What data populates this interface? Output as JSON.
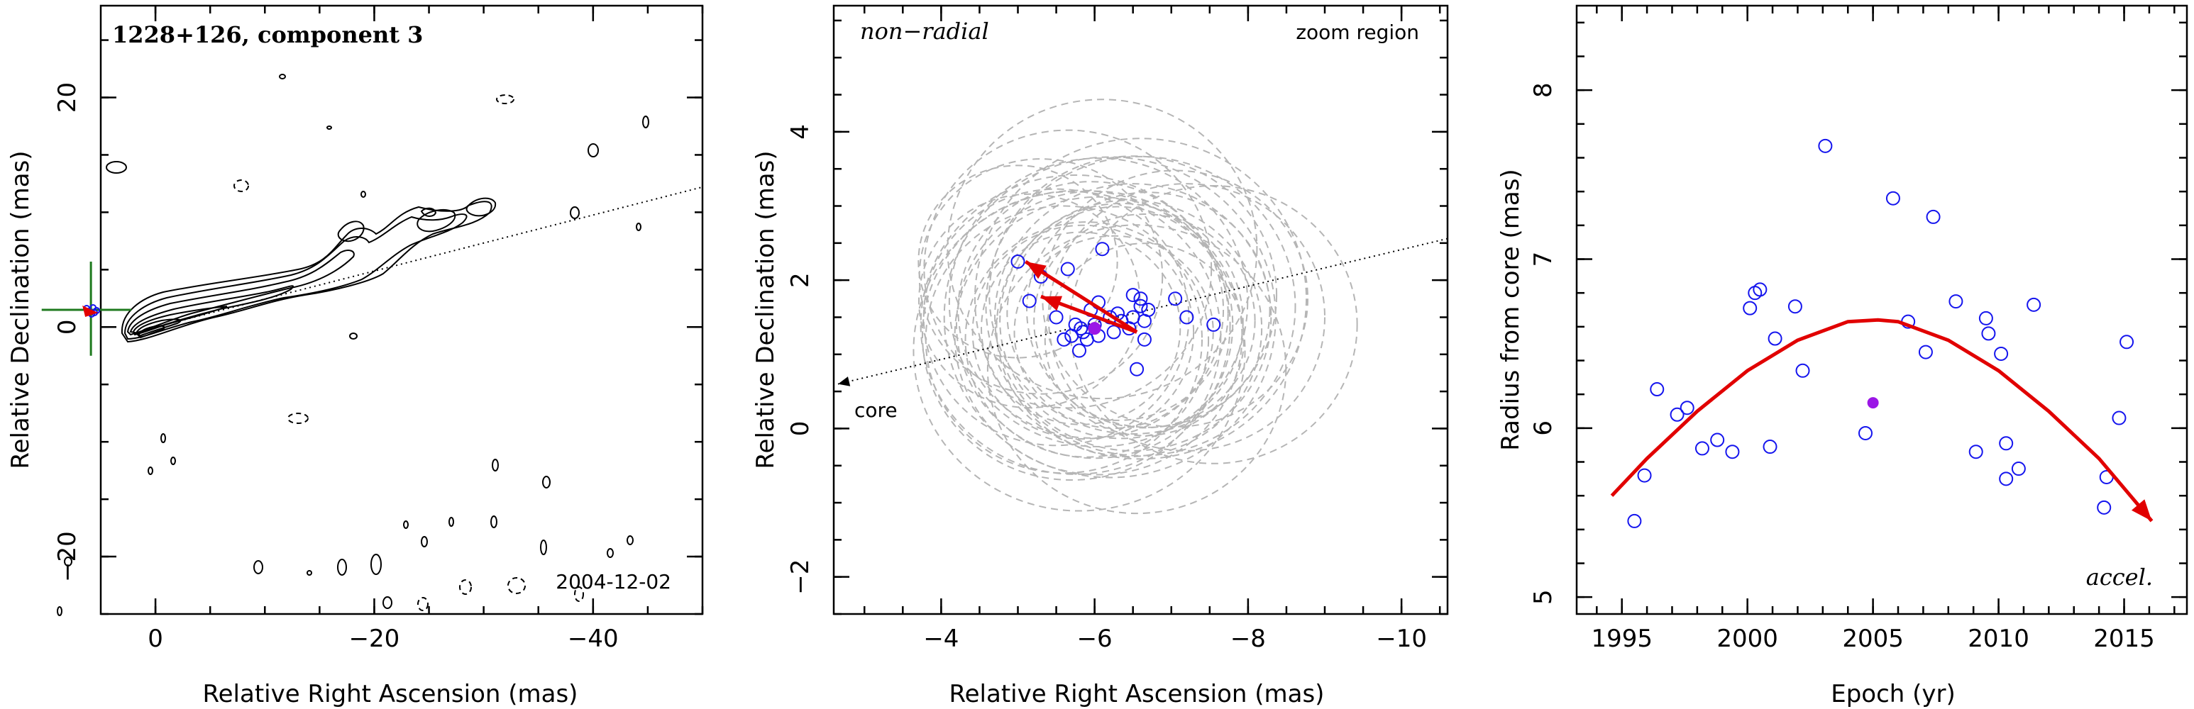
{
  "colors": {
    "points": "#1515ee",
    "mean_point": "#9b16e6",
    "fit": "#e10000",
    "zoom_box": "#1f7a1f",
    "error_circles": "#b5b5b5",
    "contours": "#000000"
  },
  "panel1": {
    "label": "1228+126, component 3",
    "epoch": "2004-12-02",
    "xlabel": "Relative Right Ascension (mas)",
    "ylabel": "Relative Declination (mas)",
    "xticks": [
      "0",
      "−20",
      "−40"
    ],
    "yticks": [
      "20",
      "0",
      "−20"
    ]
  },
  "panel2": {
    "label_left": "non−radial",
    "label_right": "zoom region",
    "core_label": "core",
    "xlabel": "Relative Right Ascension (mas)",
    "ylabel": "Relative Declination (mas)",
    "xticks": [
      "−4",
      "−6",
      "−8",
      "−10"
    ],
    "yticks": [
      "4",
      "2",
      "0",
      "−2"
    ]
  },
  "panel3": {
    "label": "accel.",
    "xlabel": "Epoch (yr)",
    "ylabel": "Radius from core (mas)",
    "xticks": [
      "1995",
      "2000",
      "2005",
      "2010",
      "2015"
    ],
    "yticks": [
      "8",
      "7",
      "6",
      "5"
    ]
  },
  "chart_data": [
    {
      "type": "contour",
      "xlim": [
        5,
        -50
      ],
      "ylim": [
        -25,
        28
      ],
      "zoom_box": {
        "x": [
          2.2,
          10.4
        ],
        "y": [
          -2.5,
          5.7
        ]
      },
      "position_angle_line": {
        "x": [
          0,
          -50
        ],
        "y": [
          0,
          12.2
        ]
      },
      "mean_position": {
        "x": 5.9,
        "y": 1.5
      }
    },
    {
      "type": "scatter",
      "xlim": [
        -2.6,
        -10.6
      ],
      "ylim": [
        -2.5,
        5.7
      ],
      "core_direction": {
        "x": [
          -10.6,
          -2.6
        ],
        "y": [
          2.56,
          0.6
        ]
      },
      "points": [
        [
          -5.0,
          2.25
        ],
        [
          -5.15,
          1.72
        ],
        [
          -5.3,
          2.05
        ],
        [
          -5.5,
          1.5
        ],
        [
          -5.6,
          1.2
        ],
        [
          -5.65,
          2.15
        ],
        [
          -5.7,
          1.25
        ],
        [
          -5.75,
          1.4
        ],
        [
          -5.8,
          1.05
        ],
        [
          -5.82,
          1.35
        ],
        [
          -5.85,
          1.3
        ],
        [
          -5.9,
          1.2
        ],
        [
          -5.95,
          1.6
        ],
        [
          -6.0,
          1.4
        ],
        [
          -6.05,
          1.25
        ],
        [
          -6.05,
          1.7
        ],
        [
          -6.1,
          2.42
        ],
        [
          -6.2,
          1.5
        ],
        [
          -6.25,
          1.3
        ],
        [
          -6.3,
          1.55
        ],
        [
          -6.35,
          1.45
        ],
        [
          -6.45,
          1.35
        ],
        [
          -6.5,
          1.5
        ],
        [
          -6.5,
          1.8
        ],
        [
          -6.55,
          0.8
        ],
        [
          -6.6,
          1.65
        ],
        [
          -6.6,
          1.75
        ],
        [
          -6.65,
          1.2
        ],
        [
          -6.65,
          1.45
        ],
        [
          -6.7,
          1.6
        ],
        [
          -7.05,
          1.75
        ],
        [
          -7.2,
          1.5
        ],
        [
          -7.55,
          1.4
        ]
      ],
      "mean": [
        -6.0,
        1.35
      ],
      "arrows": [
        {
          "from": [
            -6.55,
            1.3
          ],
          "to": [
            -5.1,
            2.25
          ]
        },
        {
          "from": [
            -6.55,
            1.3
          ],
          "to": [
            -5.3,
            1.78
          ]
        }
      ],
      "error_circle_radii": [
        1.8,
        2.0,
        2.2,
        2.4,
        2.5,
        2.6,
        2.7,
        2.8,
        3.0
      ]
    },
    {
      "type": "scatter",
      "xlim": [
        1993.2,
        2017.5
      ],
      "ylim": [
        4.9,
        8.5
      ],
      "points": [
        [
          1995.5,
          5.45
        ],
        [
          1995.9,
          5.72
        ],
        [
          1996.4,
          6.23
        ],
        [
          1997.2,
          6.08
        ],
        [
          1997.6,
          6.12
        ],
        [
          1998.2,
          5.88
        ],
        [
          1998.8,
          5.93
        ],
        [
          1999.4,
          5.86
        ],
        [
          2000.1,
          6.71
        ],
        [
          2000.3,
          6.8
        ],
        [
          2000.5,
          6.82
        ],
        [
          2000.9,
          5.89
        ],
        [
          2001.1,
          6.53
        ],
        [
          2001.9,
          6.72
        ],
        [
          2002.2,
          6.34
        ],
        [
          2003.1,
          7.67
        ],
        [
          2004.7,
          5.97
        ],
        [
          2005.8,
          7.36
        ],
        [
          2006.4,
          6.63
        ],
        [
          2007.1,
          6.45
        ],
        [
          2007.4,
          7.25
        ],
        [
          2008.3,
          6.75
        ],
        [
          2009.1,
          5.86
        ],
        [
          2009.5,
          6.65
        ],
        [
          2009.6,
          6.56
        ],
        [
          2010.1,
          6.44
        ],
        [
          2010.3,
          5.91
        ],
        [
          2010.3,
          5.7
        ],
        [
          2010.8,
          5.76
        ],
        [
          2011.4,
          6.73
        ],
        [
          2014.2,
          5.53
        ],
        [
          2014.3,
          5.71
        ],
        [
          2014.8,
          6.06
        ],
        [
          2015.1,
          6.51
        ]
      ],
      "mean": [
        2005.0,
        6.15
      ],
      "fit_curve": {
        "x": [
          1994.6,
          1996.0,
          1998.0,
          2000.0,
          2002.0,
          2004.0,
          2005.2,
          2006.0,
          2008.0,
          2010.0,
          2012.0,
          2014.0,
          2016.1
        ],
        "y": [
          5.6,
          5.82,
          6.1,
          6.34,
          6.52,
          6.63,
          6.64,
          6.63,
          6.52,
          6.34,
          6.1,
          5.82,
          5.45
        ]
      }
    }
  ]
}
